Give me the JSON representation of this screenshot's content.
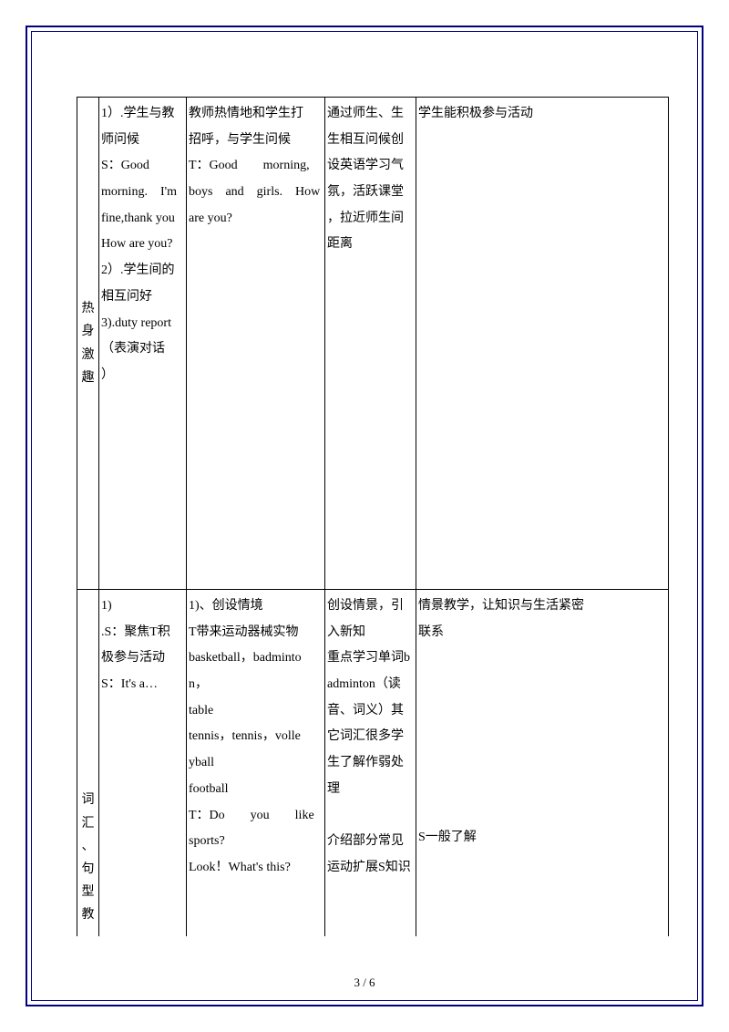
{
  "page": {
    "footer": "3 / 6"
  },
  "row1": {
    "label_chars": [
      "热",
      "身",
      "激",
      "趣"
    ],
    "col2_lines": [
      "1）.学生与教",
      "师问候",
      "S：Good",
      "morning.　I'm",
      "fine,thank you",
      "How are you?",
      "2）.学生间的",
      "相互问好",
      "3).duty report",
      "（表演对话",
      "）"
    ],
    "col3_lines": [
      "教师热情地和学生打",
      "招呼，与学生问候",
      "T：Good　　morning,",
      "boys　and　girls.　How",
      "are you?"
    ],
    "col4_lines": [
      "通过师生、生",
      "生相互问候创",
      "设英语学习气",
      "氛，活跃课堂",
      "，拉近师生间",
      "距离"
    ],
    "col5_lines": [
      "学生能积极参与活动"
    ]
  },
  "row2": {
    "label_chars": [
      "词",
      "汇",
      "、",
      "句",
      "型",
      "教"
    ],
    "col2_lines": [
      "1)",
      ".S：聚焦T积",
      "极参与活动",
      "S：It's a…"
    ],
    "col3_lines": [
      "1)、创设情境",
      "T带来运动器械实物",
      "basketball，badminto",
      "n，",
      "table",
      "tennis，tennis，volle",
      "yball",
      "football",
      "T：Do　　you　　like",
      "sports?",
      "Look！What's this?"
    ],
    "col4_lines": [
      "创设情景，引",
      "入新知",
      "重点学习单词b",
      "adminton（读",
      "音、词义）其",
      "它词汇很多学",
      "生了解作弱处",
      "理",
      "",
      "介绍部分常见",
      "运动扩展S知识"
    ],
    "col5_block1": [
      "情景教学，让知识与生活紧密",
      "联系"
    ],
    "col5_block2": [
      "S一般了解"
    ]
  }
}
